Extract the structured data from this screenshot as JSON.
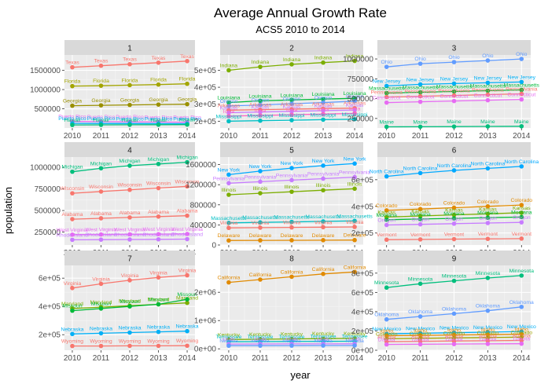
{
  "figure": {
    "title": "Average Annual Growth Rate",
    "subtitle": "ACS5 2010 to 2014",
    "xlabel": "year",
    "ylabel": "population"
  },
  "chart_data": [
    {
      "type": "line",
      "panel": "1",
      "x": [
        2010,
        2011,
        2012,
        2013,
        2014
      ],
      "ylim": [
        0,
        1900000
      ],
      "yticks": [
        500000,
        1000000,
        1500000
      ],
      "ytick_labels": [
        "500000",
        "1000000",
        "1500000"
      ],
      "series": [
        {
          "name": "Texas",
          "color": "#F8766D",
          "values": [
            1580000,
            1620000,
            1660000,
            1700000,
            1740000
          ]
        },
        {
          "name": "Florida",
          "color": "#A3A500",
          "values": [
            1090000,
            1100000,
            1115000,
            1130000,
            1150000
          ]
        },
        {
          "name": "Georgia",
          "color": "#9A9000",
          "values": [
            580000,
            590000,
            600000,
            610000,
            620000
          ]
        },
        {
          "name": "Puerto Rico",
          "color": "#E76BF3",
          "values": [
            170000,
            165000,
            160000,
            155000,
            150000
          ]
        },
        {
          "name": "Puerto Rico",
          "color": "#00B0F6",
          "values": [
            120000,
            118000,
            116000,
            114000,
            112000
          ]
        },
        {
          "name": "Hawaii",
          "color": "#00BF7D",
          "values": [
            80000,
            82000,
            84000,
            86000,
            88000
          ]
        }
      ]
    },
    {
      "type": "line",
      "panel": "2",
      "x": [
        2010,
        2011,
        2012,
        2013,
        2014
      ],
      "ylim": [
        160000,
        590000
      ],
      "yticks": [
        200000,
        300000,
        400000,
        500000
      ],
      "ytick_labels": [
        "2e+05",
        "3e+05",
        "4e+05",
        "5e+05"
      ],
      "series": [
        {
          "name": "Indiana",
          "color": "#7CAE00",
          "values": [
            500000,
            520000,
            535000,
            545000,
            555000
          ]
        },
        {
          "name": "Louisiana",
          "color": "#00BA38",
          "values": [
            310000,
            320000,
            325000,
            330000,
            335000
          ]
        },
        {
          "name": "Oregon",
          "color": "#619CFF",
          "values": [
            290000,
            296000,
            303000,
            310000,
            318000
          ]
        },
        {
          "name": "Arkansas",
          "color": "#F8766D",
          "values": [
            265000,
            268000,
            271000,
            274000,
            277000
          ]
        },
        {
          "name": "Kansas",
          "color": "#C77CFF",
          "values": [
            250000,
            254000,
            258000,
            262000,
            266000
          ]
        },
        {
          "name": "Iowa",
          "color": "#FF61C3",
          "values": [
            230000,
            234000,
            238000,
            242000,
            246000
          ]
        },
        {
          "name": "Mississippi",
          "color": "#00BFC4",
          "values": [
            200000,
            203000,
            206000,
            209000,
            212000
          ]
        }
      ]
    },
    {
      "type": "line",
      "panel": "3",
      "x": [
        2010,
        2011,
        2012,
        2013,
        2014
      ],
      "ylim": [
        130000,
        1050000
      ],
      "yticks": [
        250000,
        500000,
        750000,
        1000000
      ],
      "ytick_labels": [
        "250000",
        "500000",
        "750000",
        "1000000"
      ],
      "series": [
        {
          "name": "Ohio",
          "color": "#619CFF",
          "values": [
            900000,
            940000,
            960000,
            980000,
            1000000
          ]
        },
        {
          "name": "New Jersey",
          "color": "#00B0F6",
          "values": [
            660000,
            680000,
            690000,
            700000,
            710000
          ]
        },
        {
          "name": "Massachusetts",
          "color": "#00BA38",
          "values": [
            570000,
            580000,
            590000,
            600000,
            610000
          ]
        },
        {
          "name": "Pennsylvania",
          "color": "#F8766D",
          "values": [
            520000,
            530000,
            540000,
            550000,
            560000
          ]
        },
        {
          "name": "Connecticut",
          "color": "#E76BF3",
          "values": [
            450000,
            460000,
            470000,
            480000,
            490000
          ]
        },
        {
          "name": "Maine",
          "color": "#00BF7D",
          "values": [
            145000,
            146000,
            148000,
            150000,
            152000
          ]
        }
      ]
    },
    {
      "type": "line",
      "panel": "4",
      "x": [
        2010,
        2011,
        2012,
        2013,
        2014
      ],
      "ylim": [
        100000,
        1120000
      ],
      "yticks": [
        250000,
        500000,
        750000,
        1000000
      ],
      "ytick_labels": [
        "250000",
        "500000",
        "750000",
        "1000000"
      ],
      "series": [
        {
          "name": "Michigan",
          "color": "#00BF7D",
          "values": [
            950000,
            990000,
            1020000,
            1040000,
            1060000
          ]
        },
        {
          "name": "Wisconsin",
          "color": "#F8766D",
          "values": [
            700000,
            720000,
            740000,
            760000,
            780000
          ]
        },
        {
          "name": "Alabama",
          "color": "#F8766D",
          "values": [
            400000,
            410000,
            420000,
            430000,
            440000
          ]
        },
        {
          "name": "West Virginia",
          "color": "#E76BF3",
          "values": [
            220000,
            222000,
            224000,
            226000,
            228000
          ]
        },
        {
          "name": "Rhode Island",
          "color": "#C77CFF",
          "values": [
            160000,
            162000,
            164000,
            166000,
            168000
          ]
        }
      ]
    },
    {
      "type": "line",
      "panel": "5",
      "x": [
        2010,
        2011,
        2012,
        2013,
        2014
      ],
      "ylim": [
        0,
        1750000
      ],
      "yticks": [
        0,
        400000,
        800000,
        1200000,
        1600000
      ],
      "ytick_labels": [
        "0",
        "400000",
        "800000",
        "1200000",
        "1600000"
      ],
      "series": [
        {
          "name": "New York",
          "color": "#00A9FF",
          "values": [
            1400000,
            1470000,
            1530000,
            1580000,
            1620000
          ]
        },
        {
          "name": "Pennsylvania",
          "color": "#C77CFF",
          "values": [
            1230000,
            1260000,
            1290000,
            1320000,
            1350000
          ]
        },
        {
          "name": "Illinois",
          "color": "#7CAE00",
          "values": [
            1000000,
            1030000,
            1060000,
            1090000,
            1120000
          ]
        },
        {
          "name": "Massachusetts",
          "color": "#00BFC4",
          "values": [
            440000,
            450000,
            460000,
            470000,
            480000
          ]
        },
        {
          "name": "Virginia",
          "color": "#F8766D",
          "values": [
            340000,
            345000,
            350000,
            355000,
            360000
          ]
        },
        {
          "name": "Delaware",
          "color": "#E18A00",
          "values": [
            90000,
            92000,
            94000,
            96000,
            98000
          ]
        }
      ]
    },
    {
      "type": "line",
      "panel": "6",
      "x": [
        2010,
        2011,
        2012,
        2013,
        2014
      ],
      "ylim": [
        110000,
        770000
      ],
      "yticks": [
        200000,
        400000,
        600000
      ],
      "ytick_labels": [
        "2e+05",
        "4e+05",
        "6e+05"
      ],
      "series": [
        {
          "name": "North Carolina",
          "color": "#00A9FF",
          "values": [
            625000,
            650000,
            670000,
            685000,
            700000
          ]
        },
        {
          "name": "Colorado",
          "color": "#E18A00",
          "values": [
            370000,
            380000,
            390000,
            400000,
            410000
          ]
        },
        {
          "name": "Kansas",
          "color": "#7CAE00",
          "values": [
            320000,
            328000,
            336000,
            344000,
            352000
          ]
        },
        {
          "name": "Montana",
          "color": "#00BA38",
          "values": [
            300000,
            305000,
            310000,
            315000,
            320000
          ]
        },
        {
          "name": "Oregon",
          "color": "#C77CFF",
          "values": [
            260000,
            265000,
            270000,
            275000,
            280000
          ]
        },
        {
          "name": "Vermont",
          "color": "#F8766D",
          "values": [
            150000,
            152000,
            154000,
            156000,
            158000
          ]
        }
      ]
    },
    {
      "type": "line",
      "panel": "7",
      "x": [
        2010,
        2011,
        2012,
        2013,
        2014
      ],
      "ylim": [
        90000,
        690000
      ],
      "yticks": [
        200000,
        400000,
        600000
      ],
      "ytick_labels": [
        "2e+05",
        "4e+05",
        "6e+05"
      ],
      "series": [
        {
          "name": "Virginia",
          "color": "#F8766D",
          "values": [
            530000,
            560000,
            585000,
            605000,
            620000
          ]
        },
        {
          "name": "Maryland",
          "color": "#7CAE00",
          "values": [
            385000,
            395000,
            405000,
            415000,
            425000
          ]
        },
        {
          "name": "Missouri",
          "color": "#00BA38",
          "values": [
            370000,
            385000,
            400000,
            415000,
            450000
          ]
        },
        {
          "name": "Nebraska",
          "color": "#00B0F6",
          "values": [
            205000,
            210000,
            215000,
            220000,
            225000
          ]
        },
        {
          "name": "Wyoming",
          "color": "#F8766D",
          "values": [
            120000,
            120000,
            121000,
            121000,
            122000
          ]
        }
      ]
    },
    {
      "type": "line",
      "panel": "8",
      "x": [
        2010,
        2011,
        2012,
        2013,
        2014
      ],
      "ylim": [
        -50000,
        2950000
      ],
      "yticks": [
        0,
        1000000,
        2000000
      ],
      "ytick_labels": [
        "0e+00",
        "1e+06",
        "2e+06"
      ],
      "series": [
        {
          "name": "California",
          "color": "#E18A00",
          "values": [
            2350000,
            2450000,
            2550000,
            2650000,
            2720000
          ]
        },
        {
          "name": "Kentucky",
          "color": "#7CAE00",
          "values": [
            330000,
            340000,
            350000,
            360000,
            370000
          ]
        },
        {
          "name": "Tennessee",
          "color": "#00BFC4",
          "values": [
            250000,
            255000,
            260000,
            265000,
            270000
          ]
        },
        {
          "name": "Utah",
          "color": "#C77CFF",
          "values": [
            170000,
            172000,
            174000,
            176000,
            178000
          ]
        },
        {
          "name": "Nevada",
          "color": "#619CFF",
          "values": [
            110000,
            112000,
            114000,
            116000,
            118000
          ]
        }
      ]
    },
    {
      "type": "line",
      "panel": "9",
      "x": [
        2010,
        2011,
        2012,
        2013,
        2014
      ],
      "ylim": [
        0,
        880000
      ],
      "yticks": [
        0,
        200000,
        400000,
        600000,
        800000
      ],
      "ytick_labels": [
        "0e+00",
        "2e+05",
        "4e+05",
        "6e+05",
        "8e+05"
      ],
      "series": [
        {
          "name": "Minnesota",
          "color": "#00BF7D",
          "values": [
            650000,
            690000,
            720000,
            750000,
            775000
          ]
        },
        {
          "name": "Oklahoma",
          "color": "#619CFF",
          "values": [
            320000,
            350000,
            380000,
            410000,
            450000
          ]
        },
        {
          "name": "New Mexico",
          "color": "#00B0F6",
          "values": [
            170000,
            176000,
            182000,
            188000,
            195000
          ]
        },
        {
          "name": "Idaho",
          "color": "#E18A00",
          "values": [
            150000,
            154000,
            158000,
            162000,
            166000
          ]
        },
        {
          "name": "Colorado",
          "color": "#A3A500",
          "values": [
            120000,
            124000,
            128000,
            132000,
            136000
          ]
        },
        {
          "name": "Arizona",
          "color": "#F8766D",
          "values": [
            90000,
            93000,
            96000,
            99000,
            102000
          ]
        },
        {
          "name": "Dakota",
          "color": "#E76BF3",
          "values": [
            60000,
            62000,
            64000,
            66000,
            68000
          ]
        }
      ]
    }
  ]
}
